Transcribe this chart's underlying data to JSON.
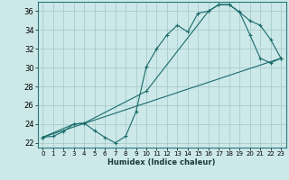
{
  "xlabel": "Humidex (Indice chaleur)",
  "bg_color": "#cce8e8",
  "grid_color": "#aacccc",
  "line_color": "#1a6b6b",
  "xlim": [
    -0.5,
    23.5
  ],
  "ylim": [
    21.5,
    37.0
  ],
  "xticks": [
    0,
    1,
    2,
    3,
    4,
    5,
    6,
    7,
    8,
    9,
    10,
    11,
    12,
    13,
    14,
    15,
    16,
    17,
    18,
    19,
    20,
    21,
    22,
    23
  ],
  "yticks": [
    22,
    24,
    26,
    28,
    30,
    32,
    34,
    36
  ],
  "line1_x": [
    0,
    1,
    2,
    3,
    4,
    5,
    6,
    7,
    8,
    9,
    10,
    11,
    12,
    13,
    14,
    15,
    16,
    17,
    18,
    19,
    20,
    21,
    22,
    23
  ],
  "line1_y": [
    22.6,
    22.7,
    23.2,
    24.0,
    24.1,
    23.3,
    22.6,
    22.0,
    22.7,
    25.3,
    30.1,
    32.0,
    33.5,
    34.5,
    33.8,
    35.8,
    36.0,
    36.7,
    36.7,
    35.9,
    33.5,
    31.0,
    30.5,
    31.0
  ],
  "line2_x": [
    0,
    23
  ],
  "line2_y": [
    22.6,
    31.0
  ],
  "line3_x": [
    0,
    3,
    4,
    10,
    16,
    17,
    18,
    19,
    20,
    21,
    22,
    23
  ],
  "line3_y": [
    22.6,
    24.0,
    24.1,
    27.5,
    36.0,
    36.7,
    36.7,
    35.9,
    35.0,
    34.5,
    33.0,
    31.0
  ]
}
